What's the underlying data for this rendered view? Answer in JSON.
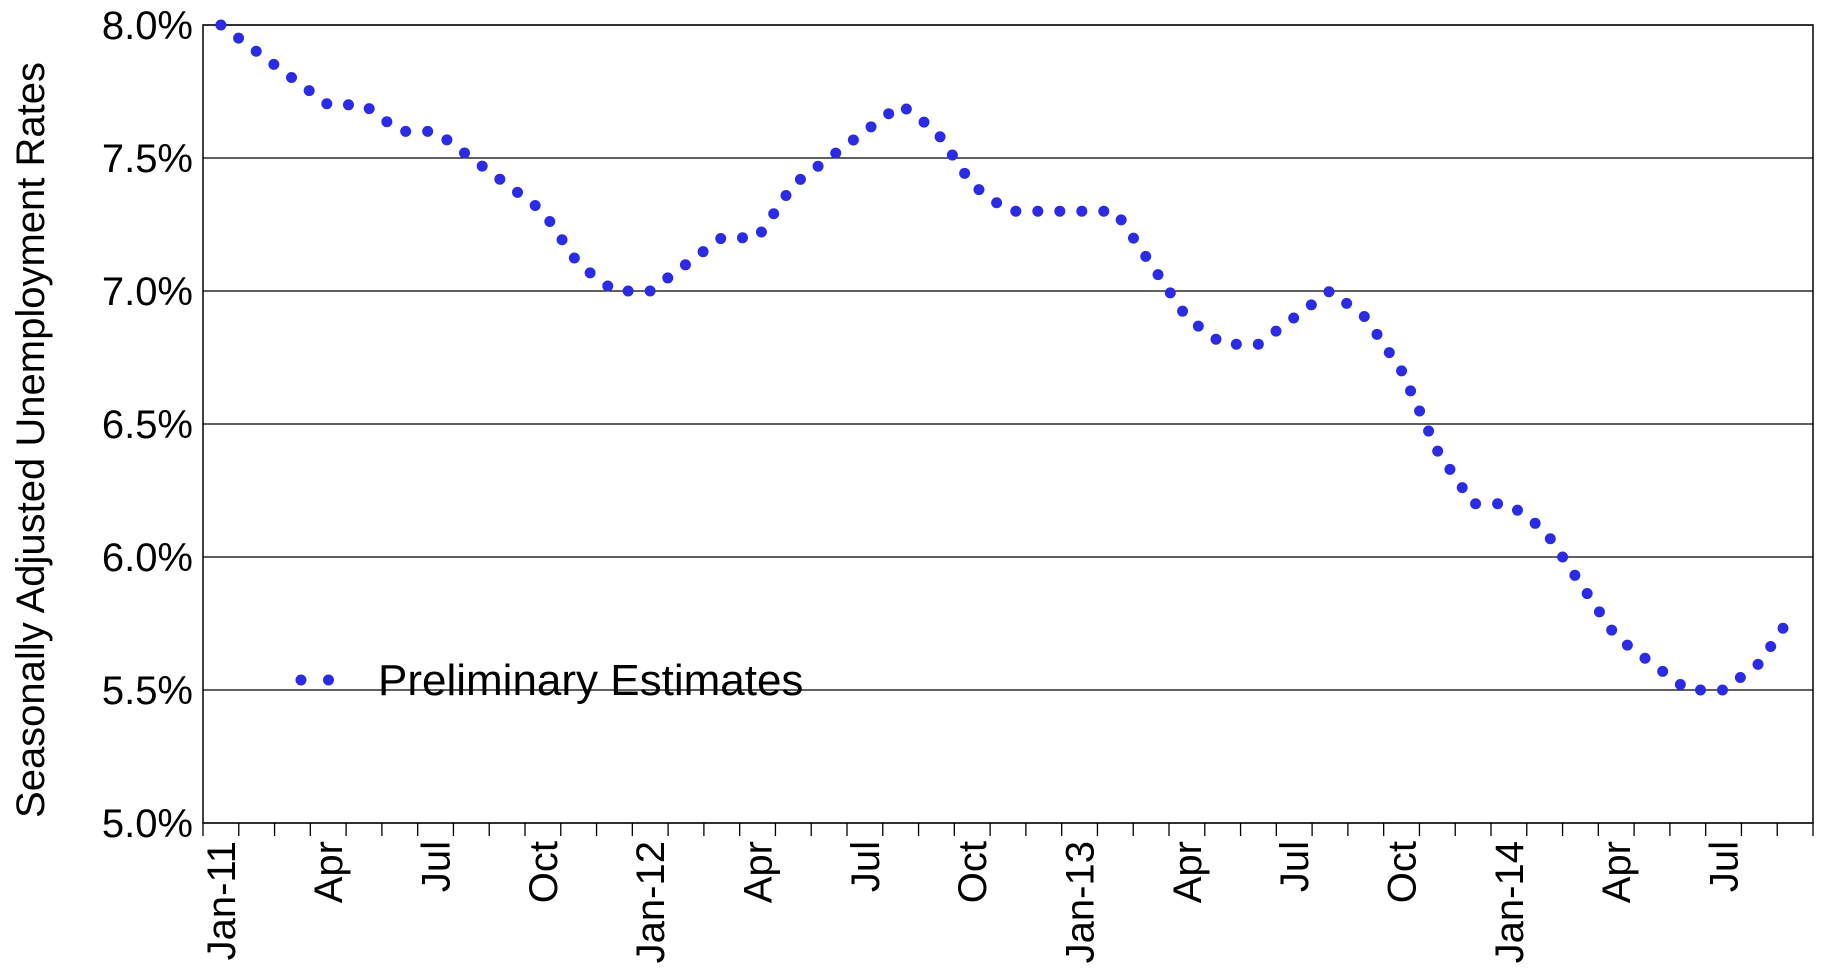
{
  "chart_data": {
    "type": "line",
    "y_label": "Seasonally Adjusted Unemployment Rates",
    "categories": [
      "Jan-11",
      null,
      null,
      "Apr",
      null,
      null,
      "Jul",
      null,
      null,
      "Oct",
      null,
      null,
      "Jan-12",
      null,
      null,
      "Apr",
      null,
      null,
      "Jul",
      null,
      null,
      "Oct",
      null,
      null,
      "Jan-13",
      null,
      null,
      "Apr",
      null,
      null,
      "Jul",
      null,
      null,
      "Oct",
      null,
      null,
      "Jan-14",
      null,
      null,
      "Apr",
      null,
      null,
      "Jul",
      null,
      null
    ],
    "series": [
      {
        "name": "Preliminary Estimates",
        "color": "#2b2be6",
        "values": [
          8.0,
          7.9,
          7.8,
          7.7,
          7.7,
          7.6,
          7.6,
          7.5,
          7.4,
          7.3,
          7.1,
          7.0,
          7.0,
          7.1,
          7.2,
          7.2,
          7.4,
          7.5,
          7.6,
          7.7,
          7.6,
          7.4,
          7.3,
          7.3,
          7.3,
          7.3,
          7.1,
          6.9,
          6.8,
          6.8,
          6.9,
          7.0,
          6.9,
          6.7,
          6.4,
          6.2,
          6.2,
          6.1,
          5.9,
          5.7,
          5.6,
          5.5,
          5.5,
          5.6,
          5.8
        ]
      }
    ],
    "ylim": [
      5.0,
      8.0
    ],
    "yticks": [
      {
        "value": 5.0,
        "label": "5.0%"
      },
      {
        "value": 5.5,
        "label": "5.5%"
      },
      {
        "value": 6.0,
        "label": "6.0%"
      },
      {
        "value": 6.5,
        "label": "6.5%"
      },
      {
        "value": 7.0,
        "label": "7.0%"
      },
      {
        "value": 7.5,
        "label": "7.5%"
      },
      {
        "value": 8.0,
        "label": "8.0%"
      }
    ],
    "grid": true,
    "legend": "lower left"
  }
}
